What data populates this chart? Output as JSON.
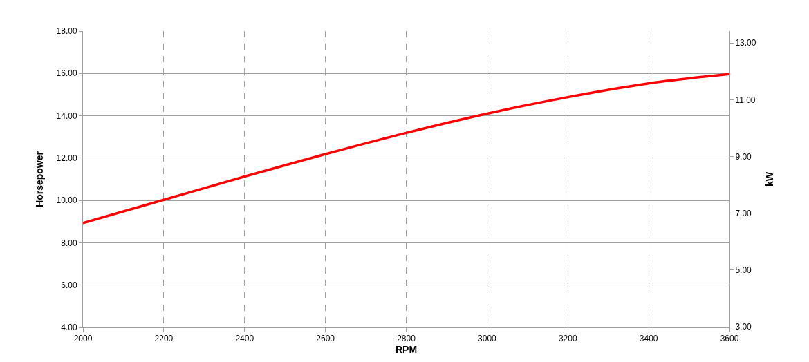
{
  "chart_data": {
    "type": "line",
    "xlabel": "RPM",
    "ylabel": "Horsepower",
    "y2label": "kW",
    "x": [
      2000,
      2200,
      2400,
      2600,
      2800,
      3000,
      3200,
      3400,
      3600
    ],
    "series": [
      {
        "color": "#ff0000",
        "values": [
          8.93,
          10.03,
          11.13,
          12.19,
          13.19,
          14.1,
          14.88,
          15.53,
          15.97
        ]
      }
    ],
    "xlim": [
      2000,
      3600
    ],
    "xticks": [
      2000,
      2200,
      2400,
      2600,
      2800,
      3000,
      3200,
      3400,
      3600
    ],
    "ylim": [
      4,
      18
    ],
    "yticks": [
      {
        "value": 4,
        "label": "4.00"
      },
      {
        "value": 6,
        "label": "6.00"
      },
      {
        "value": 8,
        "label": "8.00"
      },
      {
        "value": 10,
        "label": "10.00"
      },
      {
        "value": 12,
        "label": "12.00"
      },
      {
        "value": 14,
        "label": "14.00"
      },
      {
        "value": 16,
        "label": "16.00"
      },
      {
        "value": 18,
        "label": "18.00"
      }
    ],
    "y2lim": [
      2.98,
      13.42
    ],
    "y2ticks": [
      {
        "value": 3,
        "label": "3.00"
      },
      {
        "value": 5,
        "label": "5.00"
      },
      {
        "value": 7,
        "label": "7.00"
      },
      {
        "value": 9,
        "label": "9.00"
      },
      {
        "value": 11,
        "label": "11.00"
      },
      {
        "value": 13,
        "label": "13.00"
      }
    ],
    "grid": true,
    "marker": "none",
    "line_style": "solid"
  }
}
